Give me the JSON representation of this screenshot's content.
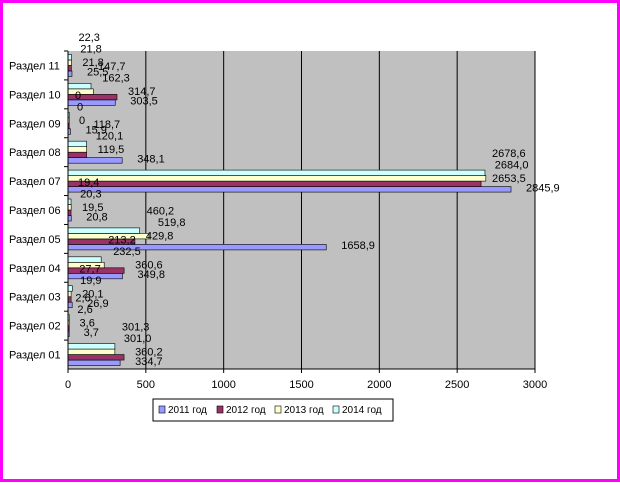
{
  "chart_data": {
    "type": "bar",
    "orientation": "horizontal",
    "categories": [
      "Раздел 01",
      "Раздел 02",
      "Раздел 03",
      "Раздел 04",
      "Раздел 05",
      "Раздел 06",
      "Раздел 07",
      "Раздел 08",
      "Раздел 09",
      "Раздел 10",
      "Раздел 11"
    ],
    "series": [
      {
        "name": "2011 год",
        "color": "#9999ff",
        "values": [
          334.7,
          3.7,
          26.9,
          349.8,
          1658.9,
          20.8,
          2845.9,
          348.1,
          15.9,
          303.5,
          25.5
        ]
      },
      {
        "name": "2012 год",
        "color": "#993366",
        "values": [
          360.2,
          3.6,
          20.1,
          360.6,
          429.8,
          19.5,
          2653.5,
          119.5,
          0,
          314.7,
          21.8
        ]
      },
      {
        "name": "2013 год",
        "color": "#ffffcc",
        "values": [
          301.0,
          2.6,
          19.9,
          232.5,
          519.8,
          20.3,
          2684.0,
          120.1,
          0,
          162.3,
          21.8
        ]
      },
      {
        "name": "2014 год",
        "color": "#ccffff",
        "values": [
          301.3,
          2.6,
          27.7,
          213.2,
          460.2,
          19.4,
          2678.6,
          118.7,
          0,
          147.7,
          22.3
        ]
      }
    ],
    "labels": [
      [
        "334,7",
        "3,7",
        "26,9",
        "349,8",
        "1658,9",
        "20,8",
        "2845,9",
        "348,1",
        "15,9",
        "303,5",
        "25,5"
      ],
      [
        "360,2",
        "3,6",
        "20,1",
        "360,6",
        "429,8",
        "19,5",
        "2653,5",
        "119,5",
        "0",
        "314,7",
        "21,8"
      ],
      [
        "301,0",
        "2,6",
        "19,9",
        "232,5",
        "519,8",
        "20,3",
        "2684,0",
        "120,1",
        "0",
        "162,3",
        "21,8"
      ],
      [
        "301,3",
        "2,6",
        "27,7",
        "213,2",
        "460,2",
        "19,4",
        "2678,6",
        "118,7",
        "0",
        "147,7",
        "22,3"
      ]
    ],
    "xlim": [
      0,
      3000
    ],
    "x_ticks": [
      "0",
      "500",
      "1000",
      "1500",
      "2000",
      "2500",
      "3000"
    ],
    "grid": true,
    "plot_background": "#c0c0c0",
    "legend_position": "bottom",
    "title": "",
    "xlabel": "",
    "ylabel": ""
  }
}
